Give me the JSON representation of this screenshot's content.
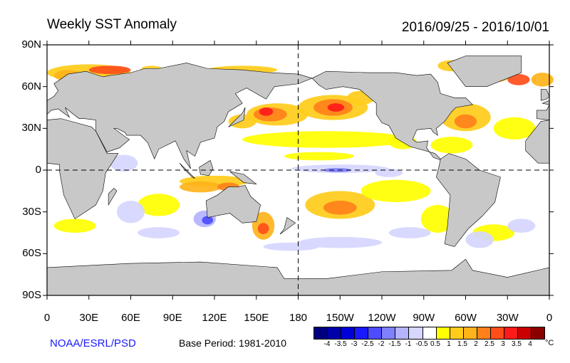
{
  "title": "Weekly SST Anomaly",
  "date_range": "2016/09/25 - 2016/10/01",
  "lat_labels": [
    "90N",
    "60N",
    "30N",
    "0",
    "30S",
    "60S",
    "90S"
  ],
  "lon_labels": [
    "0",
    "30E",
    "60E",
    "90E",
    "120E",
    "150E",
    "180",
    "150W",
    "120W",
    "90W",
    "60W",
    "30W",
    "0"
  ],
  "credit": "NOAA/ESRL/PSD",
  "base_period": "Base Period: 1981-2010",
  "colorbar": {
    "unit": "°C",
    "labels": [
      "-4",
      "-3.5",
      "-3",
      "-2.5",
      "-2",
      "-1.5",
      "-1",
      "-0.5",
      "0.5",
      "1",
      "1.5",
      "2",
      "2.5",
      "3",
      "3.5",
      "4"
    ],
    "colors": [
      "#00007f",
      "#0000a8",
      "#0000d8",
      "#1a1aff",
      "#4d4dff",
      "#8080ff",
      "#b3b3ff",
      "#d6d6ff",
      "#ffffff",
      "#ffff00",
      "#ffcc1a",
      "#ffb31a",
      "#ff801a",
      "#ff4d1a",
      "#ff1a1a",
      "#cc0000",
      "#8b0000"
    ]
  },
  "colors": {
    "land": "#c8c8c8",
    "credit": "#1a1aff"
  }
}
